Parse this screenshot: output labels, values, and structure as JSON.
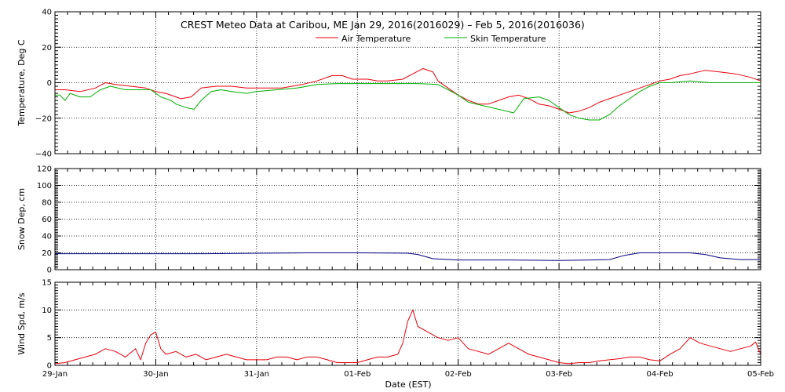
{
  "chart_data": {
    "title": "CREST Meteo Data at Caribou, ME   Jan 29, 2016(2016029) – Feb  5, 2016(2016036)",
    "xlabel": "Date (EST)",
    "x_tick_labels": [
      "29-Jan",
      "30-Jan",
      "31-Jan",
      "01-Feb",
      "02-Feb",
      "03-Feb",
      "04-Feb",
      "05-Feb"
    ],
    "xlim_days": [
      0,
      7
    ],
    "grid": true,
    "panels": [
      {
        "type": "line",
        "ylabel": "Temperature, Deg C",
        "ylim": [
          -40,
          40
        ],
        "yticks": [
          -40,
          -20,
          0,
          20,
          40
        ],
        "ytick_labels": [
          "−40",
          "−20",
          "0",
          "20",
          "40"
        ],
        "legend": "top-center",
        "series": [
          {
            "name": "Air Temperature",
            "color": "#e8000b",
            "points": [
              [
                0,
                -4
              ],
              [
                0.1,
                -4
              ],
              [
                0.25,
                -5
              ],
              [
                0.4,
                -3
              ],
              [
                0.5,
                0
              ],
              [
                0.6,
                -1
              ],
              [
                0.75,
                -2
              ],
              [
                0.9,
                -3
              ],
              [
                1.0,
                -5
              ],
              [
                1.1,
                -6
              ],
              [
                1.25,
                -9
              ],
              [
                1.35,
                -8
              ],
              [
                1.45,
                -3
              ],
              [
                1.6,
                -2
              ],
              [
                1.75,
                -2
              ],
              [
                1.9,
                -3
              ],
              [
                2.0,
                -3
              ],
              [
                2.1,
                -3
              ],
              [
                2.25,
                -3
              ],
              [
                2.35,
                -2
              ],
              [
                2.45,
                -1
              ],
              [
                2.6,
                1
              ],
              [
                2.75,
                4
              ],
              [
                2.85,
                4
              ],
              [
                2.95,
                2
              ],
              [
                3.0,
                2
              ],
              [
                3.1,
                2
              ],
              [
                3.2,
                1
              ],
              [
                3.3,
                1
              ],
              [
                3.45,
                2
              ],
              [
                3.55,
                5
              ],
              [
                3.65,
                8
              ],
              [
                3.75,
                6
              ],
              [
                3.8,
                1
              ],
              [
                3.9,
                -3
              ],
              [
                4.0,
                -7
              ],
              [
                4.1,
                -10
              ],
              [
                4.2,
                -12
              ],
              [
                4.3,
                -12
              ],
              [
                4.4,
                -10
              ],
              [
                4.5,
                -8
              ],
              [
                4.6,
                -7
              ],
              [
                4.7,
                -9
              ],
              [
                4.8,
                -12
              ],
              [
                4.9,
                -13
              ],
              [
                5.0,
                -15
              ],
              [
                5.1,
                -17
              ],
              [
                5.2,
                -16
              ],
              [
                5.3,
                -14
              ],
              [
                5.4,
                -11
              ],
              [
                5.5,
                -9
              ],
              [
                5.6,
                -7
              ],
              [
                5.7,
                -5
              ],
              [
                5.8,
                -3
              ],
              [
                5.9,
                -1
              ],
              [
                6.0,
                1
              ],
              [
                6.1,
                2
              ],
              [
                6.2,
                4
              ],
              [
                6.3,
                5
              ],
              [
                6.45,
                7
              ],
              [
                6.6,
                6
              ],
              [
                6.75,
                5
              ],
              [
                6.9,
                3
              ],
              [
                7.0,
                1
              ]
            ]
          },
          {
            "name": "Skin Temperature",
            "color": "#00b000",
            "points": [
              [
                0,
                -7
              ],
              [
                0.05,
                -7
              ],
              [
                0.1,
                -10
              ],
              [
                0.15,
                -6
              ],
              [
                0.25,
                -8
              ],
              [
                0.35,
                -8
              ],
              [
                0.45,
                -4
              ],
              [
                0.55,
                -2
              ],
              [
                0.7,
                -4
              ],
              [
                0.85,
                -4
              ],
              [
                0.95,
                -4
              ],
              [
                1.05,
                -8
              ],
              [
                1.15,
                -10
              ],
              [
                1.2,
                -12
              ],
              [
                1.3,
                -14
              ],
              [
                1.38,
                -15
              ],
              [
                1.45,
                -10
              ],
              [
                1.55,
                -5
              ],
              [
                1.65,
                -4
              ],
              [
                1.75,
                -5
              ],
              [
                1.9,
                -6
              ],
              [
                2.0,
                -5
              ],
              [
                2.2,
                -4
              ],
              [
                2.4,
                -3
              ],
              [
                2.6,
                -1
              ],
              [
                2.8,
                -0.5
              ],
              [
                3.0,
                -0.5
              ],
              [
                3.3,
                -0.5
              ],
              [
                3.6,
                -0.5
              ],
              [
                3.8,
                -1
              ],
              [
                3.9,
                -4
              ],
              [
                4.0,
                -7
              ],
              [
                4.1,
                -11
              ],
              [
                4.25,
                -13
              ],
              [
                4.4,
                -15
              ],
              [
                4.55,
                -17
              ],
              [
                4.65,
                -9
              ],
              [
                4.8,
                -8
              ],
              [
                4.9,
                -10
              ],
              [
                5.0,
                -14
              ],
              [
                5.1,
                -18
              ],
              [
                5.2,
                -20
              ],
              [
                5.3,
                -21
              ],
              [
                5.4,
                -21
              ],
              [
                5.5,
                -18
              ],
              [
                5.6,
                -13
              ],
              [
                5.7,
                -9
              ],
              [
                5.8,
                -5
              ],
              [
                5.9,
                -2
              ],
              [
                6.0,
                0
              ],
              [
                6.1,
                0
              ],
              [
                6.3,
                1
              ],
              [
                6.5,
                0
              ],
              [
                6.7,
                0
              ],
              [
                6.9,
                0
              ],
              [
                7.0,
                0
              ]
            ]
          }
        ]
      },
      {
        "type": "line",
        "ylabel": "Snow Dep, cm",
        "ylim": [
          0,
          120
        ],
        "yticks": [
          0,
          20,
          40,
          60,
          80,
          100,
          120
        ],
        "ytick_labels": [
          "0",
          "20",
          "40",
          "60",
          "80",
          "100",
          "120"
        ],
        "series": [
          {
            "color": "#000080",
            "points": [
              [
                0,
                19
              ],
              [
                0.5,
                19
              ],
              [
                1.0,
                19
              ],
              [
                1.5,
                19
              ],
              [
                2.0,
                19.5
              ],
              [
                2.5,
                20
              ],
              [
                3.0,
                20
              ],
              [
                3.5,
                19.5
              ],
              [
                3.6,
                18
              ],
              [
                3.75,
                13
              ],
              [
                4.0,
                11.5
              ],
              [
                4.5,
                11.5
              ],
              [
                5.0,
                11
              ],
              [
                5.3,
                11.5
              ],
              [
                5.5,
                12
              ],
              [
                5.65,
                17
              ],
              [
                5.8,
                20
              ],
              [
                6.0,
                20
              ],
              [
                6.3,
                20
              ],
              [
                6.45,
                18
              ],
              [
                6.6,
                14
              ],
              [
                6.8,
                12
              ],
              [
                7.0,
                12
              ]
            ]
          }
        ]
      },
      {
        "type": "line",
        "ylabel": "Wind Spd, m/s",
        "ylim": [
          0,
          15
        ],
        "yticks": [
          0,
          5,
          10,
          15
        ],
        "ytick_labels": [
          "0",
          "5",
          "10",
          "15"
        ],
        "series": [
          {
            "color": "#e8000b",
            "points": [
              [
                0,
                0.3
              ],
              [
                0.1,
                0.5
              ],
              [
                0.2,
                1
              ],
              [
                0.3,
                1.5
              ],
              [
                0.4,
                2
              ],
              [
                0.5,
                3
              ],
              [
                0.6,
                2.5
              ],
              [
                0.7,
                1.5
              ],
              [
                0.8,
                3
              ],
              [
                0.85,
                1
              ],
              [
                0.9,
                4
              ],
              [
                0.95,
                5.5
              ],
              [
                1.0,
                6
              ],
              [
                1.05,
                3
              ],
              [
                1.1,
                2
              ],
              [
                1.2,
                2.5
              ],
              [
                1.3,
                1.5
              ],
              [
                1.4,
                2
              ],
              [
                1.5,
                1
              ],
              [
                1.6,
                1.5
              ],
              [
                1.7,
                2
              ],
              [
                1.8,
                1.5
              ],
              [
                1.9,
                1
              ],
              [
                2.0,
                1
              ],
              [
                2.1,
                1
              ],
              [
                2.2,
                1.5
              ],
              [
                2.3,
                1.5
              ],
              [
                2.4,
                1
              ],
              [
                2.5,
                1.5
              ],
              [
                2.6,
                1.5
              ],
              [
                2.7,
                1
              ],
              [
                2.8,
                0.5
              ],
              [
                2.9,
                0.5
              ],
              [
                3.0,
                0.5
              ],
              [
                3.1,
                1
              ],
              [
                3.2,
                1.5
              ],
              [
                3.3,
                1.5
              ],
              [
                3.4,
                2
              ],
              [
                3.45,
                4
              ],
              [
                3.5,
                8
              ],
              [
                3.55,
                10
              ],
              [
                3.6,
                7
              ],
              [
                3.7,
                6
              ],
              [
                3.8,
                5
              ],
              [
                3.9,
                4.5
              ],
              [
                4.0,
                5
              ],
              [
                4.1,
                3
              ],
              [
                4.2,
                2.5
              ],
              [
                4.3,
                2
              ],
              [
                4.4,
                3
              ],
              [
                4.5,
                4
              ],
              [
                4.6,
                3
              ],
              [
                4.7,
                2
              ],
              [
                4.8,
                1.5
              ],
              [
                4.9,
                1
              ],
              [
                5.0,
                0.5
              ],
              [
                5.1,
                0.3
              ],
              [
                5.2,
                0.5
              ],
              [
                5.3,
                0.5
              ],
              [
                5.4,
                0.8
              ],
              [
                5.5,
                1
              ],
              [
                5.6,
                1.2
              ],
              [
                5.7,
                1.5
              ],
              [
                5.8,
                1.5
              ],
              [
                5.9,
                1
              ],
              [
                6.0,
                0.8
              ],
              [
                6.1,
                2
              ],
              [
                6.2,
                3
              ],
              [
                6.3,
                5
              ],
              [
                6.4,
                4
              ],
              [
                6.5,
                3.5
              ],
              [
                6.6,
                3
              ],
              [
                6.7,
                2.5
              ],
              [
                6.8,
                3
              ],
              [
                6.9,
                3.5
              ],
              [
                6.95,
                4.2
              ],
              [
                7.0,
                2
              ]
            ]
          }
        ]
      }
    ]
  }
}
